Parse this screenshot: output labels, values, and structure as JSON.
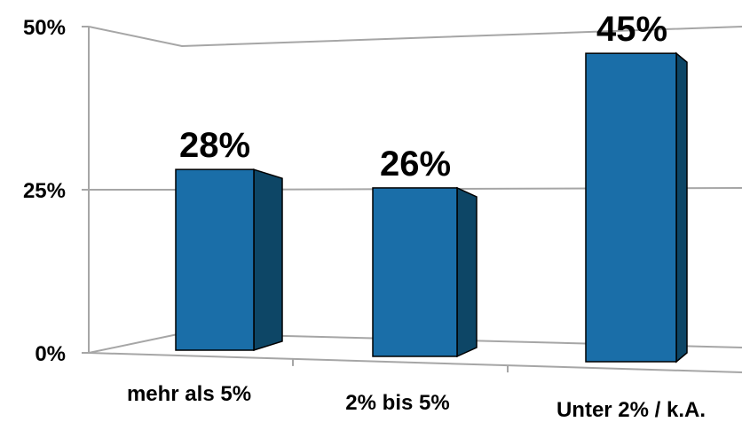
{
  "chart_data": {
    "type": "bar",
    "categories": [
      "mehr als 5%",
      "2% bis 5%",
      "Unter 2% / k.A."
    ],
    "values": [
      28,
      26,
      45
    ],
    "data_labels": [
      "28%",
      "26%",
      "45%"
    ],
    "y_ticks": [
      0,
      25,
      50
    ],
    "y_tick_labels": [
      "0%",
      "25%",
      "50%"
    ],
    "ylim": [
      0,
      50
    ],
    "grid": true,
    "legend": "none",
    "title": "",
    "xlabel": "",
    "ylabel": "",
    "colors": {
      "bar_front": "#1a6ea8",
      "bar_side": "#0d4666",
      "bar_top": "#1d78b4",
      "bar_outline": "#000000",
      "grid": "#a6a6a6"
    }
  }
}
